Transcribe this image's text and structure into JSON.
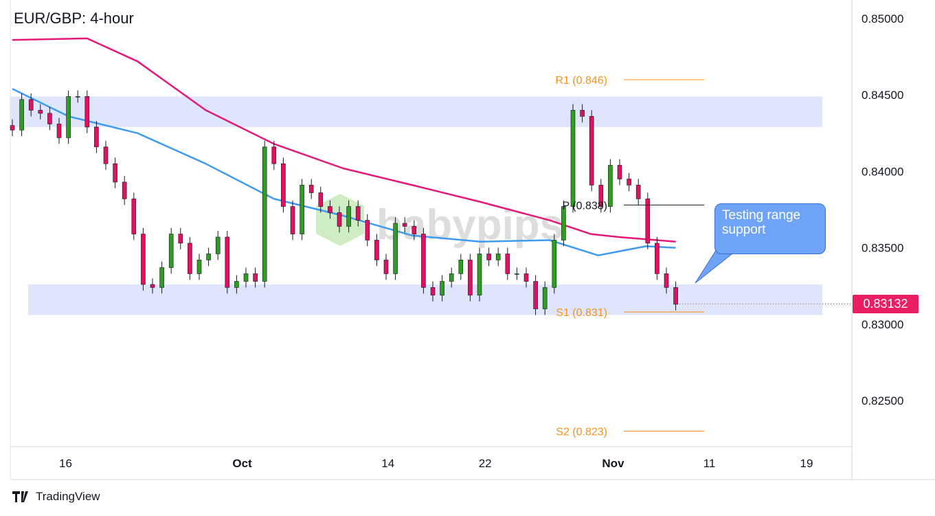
{
  "chart_data": {
    "type": "candlestick",
    "title": "EUR/GBP: 4-hour",
    "ylim": [
      0.8195,
      0.8512
    ],
    "y_ticks": [
      "0.85000",
      "0.84500",
      "0.84000",
      "0.83500",
      "0.83000",
      "0.82500"
    ],
    "y_tick_values": [
      0.85,
      0.845,
      0.84,
      0.835,
      0.83,
      0.825
    ],
    "x_ticks": [
      {
        "label": "16",
        "bar": 5.7
      },
      {
        "label": "Oct",
        "bar": 24.6
      },
      {
        "label": "14",
        "bar": 40.2
      },
      {
        "label": "22",
        "bar": 50.6
      },
      {
        "label": "Nov",
        "bar": 64.3
      },
      {
        "label": "11",
        "bar": 74.6
      },
      {
        "label": "19",
        "bar": 85
      }
    ],
    "closes": [
      0.8427,
      0.8447,
      0.844,
      0.8438,
      0.8431,
      0.8422,
      0.8449,
      0.8449,
      0.8429,
      0.8416,
      0.8405,
      0.8393,
      0.8382,
      0.8359,
      0.8326,
      0.8324,
      0.8337,
      0.8359,
      0.8353,
      0.8333,
      0.8342,
      0.8346,
      0.8357,
      0.8324,
      0.8328,
      0.8333,
      0.8328,
      0.8416,
      0.8405,
      0.8377,
      0.8359,
      0.8391,
      0.8386,
      0.8377,
      0.8373,
      0.8364,
      0.8377,
      0.8368,
      0.8355,
      0.8342,
      0.8333,
      0.8366,
      0.8364,
      0.8359,
      0.8324,
      0.8319,
      0.8328,
      0.8333,
      0.8342,
      0.8319,
      0.8346,
      0.8342,
      0.8346,
      0.8333,
      0.8333,
      0.8328,
      0.831,
      0.8324,
      0.8355,
      0.8377,
      0.844,
      0.8436,
      0.8391,
      0.8377,
      0.8404,
      0.8395,
      0.8391,
      0.8382,
      0.8353,
      0.8333,
      0.8324,
      0.8313
    ],
    "ma_red": [
      [
        0,
        0.8486
      ],
      [
        8,
        0.8487
      ],
      [
        13.4,
        0.8472
      ],
      [
        20.7,
        0.844
      ],
      [
        28,
        0.8418
      ],
      [
        35.4,
        0.8402
      ],
      [
        42.8,
        0.8391
      ],
      [
        50.1,
        0.838
      ],
      [
        57.5,
        0.8368
      ],
      [
        61.9,
        0.8359
      ],
      [
        64.9,
        0.8357
      ],
      [
        71,
        0.8354
      ]
    ],
    "ma_blue": [
      [
        0,
        0.8454
      ],
      [
        6,
        0.8436
      ],
      [
        13.4,
        0.8425
      ],
      [
        20.7,
        0.8405
      ],
      [
        28,
        0.8382
      ],
      [
        35.4,
        0.8371
      ],
      [
        42.8,
        0.8358
      ],
      [
        50.1,
        0.8354
      ],
      [
        57.5,
        0.8355
      ],
      [
        62.7,
        0.8345
      ],
      [
        67.8,
        0.8351
      ],
      [
        71,
        0.835
      ]
    ],
    "zones": [
      {
        "from": 0.8429,
        "to": 0.8449
      },
      {
        "from": 0.8306,
        "to": 0.8326
      }
    ],
    "pivots": [
      {
        "label": "R1 (0.846)",
        "value": 0.846,
        "color": "#f7931a"
      },
      {
        "label": "P (0.838)",
        "value": 0.8378,
        "color": "#131722"
      },
      {
        "label": "S1 (0.831)",
        "value": 0.8308,
        "color": "#f7931a"
      },
      {
        "label": "S2 (0.823)",
        "value": 0.823,
        "color": "#f7931a"
      }
    ],
    "last_price": "0.83132",
    "annotation": "Testing range support",
    "colors": {
      "up": "#2e9e1f",
      "down": "#e0115f",
      "ma_red": "#e6177a",
      "ma_blue": "#3d9bf0",
      "zone": "#dfe6fb",
      "badge": "#e91e63"
    }
  },
  "watermark": "babypips",
  "brand": "TradingView"
}
